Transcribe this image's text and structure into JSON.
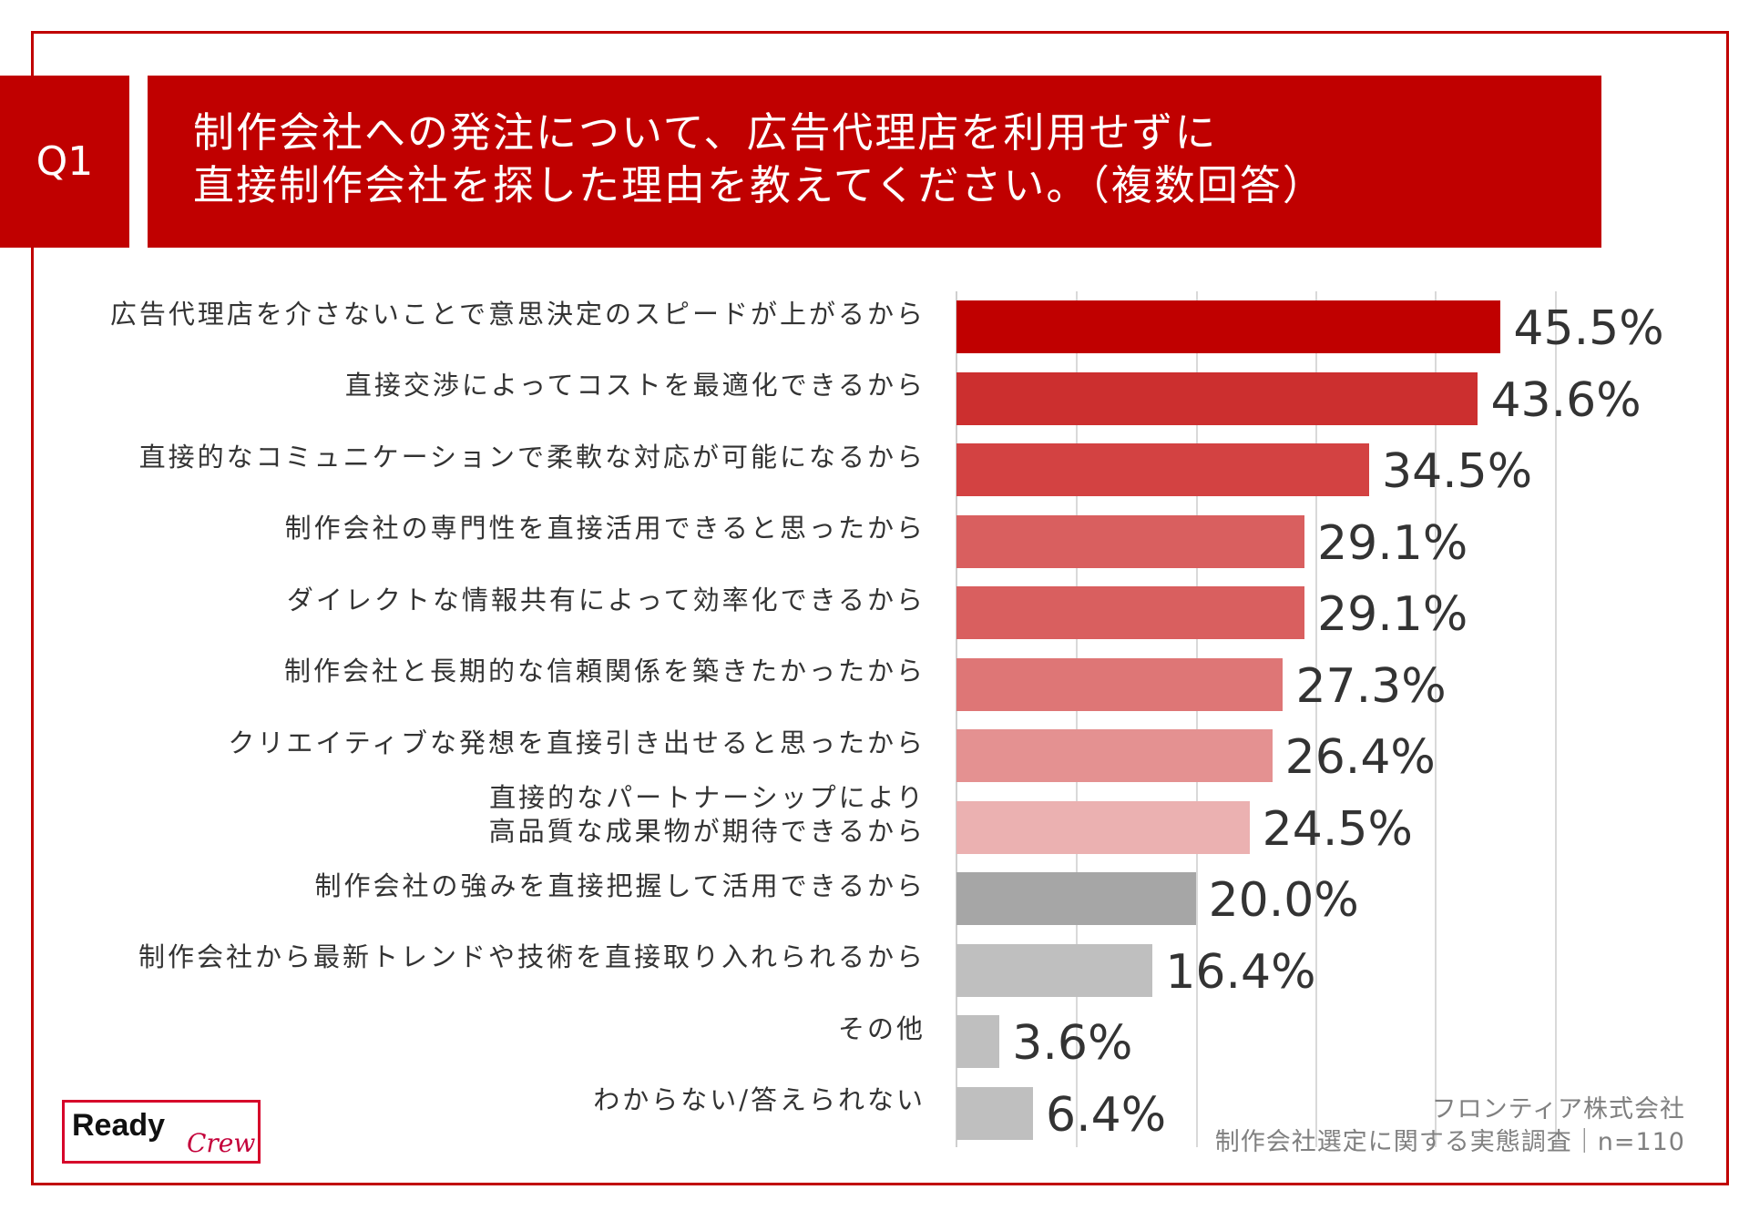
{
  "header": {
    "badge": "Q1",
    "title_line1": "制作会社への発注について、広告代理店を利用せずに",
    "title_line2": "直接制作会社を探した理由を教えてください。（複数回答）"
  },
  "chart_data": {
    "type": "bar",
    "orientation": "horizontal",
    "xlim": [
      0,
      50
    ],
    "categories": [
      "広告代理店を介さないことで意思決定のスピードが上がるから",
      "直接交渉によってコストを最適化できるから",
      "直接的なコミュニケーションで柔軟な対応が可能になるから",
      "制作会社の専門性を直接活用できると思ったから",
      "ダイレクトな情報共有によって効率化できるから",
      "制作会社と長期的な信頼関係を築きたかったから",
      "クリエイティブな発想を直接引き出せると思ったから",
      "直接的なパートナーシップにより\n高品質な成果物が期待できるから",
      "制作会社の強みを直接把握して活用できるから",
      "制作会社から最新トレンドや技術を直接取り入れられるから",
      "その他",
      "わからない/答えられない"
    ],
    "values": [
      45.5,
      43.6,
      34.5,
      29.1,
      29.1,
      27.3,
      26.4,
      24.5,
      20.0,
      16.4,
      3.6,
      6.4
    ],
    "value_labels": [
      "45.5%",
      "43.6%",
      "34.5%",
      "29.1%",
      "29.1%",
      "27.3%",
      "26.4%",
      "24.5%",
      "20.0%",
      "16.4%",
      "3.6%",
      "6.4%"
    ],
    "colors": [
      "#c00000",
      "#cc2f2f",
      "#d34242",
      "#d95f5f",
      "#d95f5f",
      "#de7676",
      "#e49191",
      "#ebb1b1",
      "#a6a6a6",
      "#bfbfbf",
      "#bfbfbf",
      "#bfbfbf"
    ]
  },
  "source": {
    "line1": "フロンティア株式会社",
    "line2": "制作会社選定に関する実態調査｜n=110"
  },
  "logo": {
    "ready": "Ready",
    "crew": "Crew"
  },
  "colors": {
    "accent": "#c00000",
    "logo_border": "#d6002a"
  }
}
